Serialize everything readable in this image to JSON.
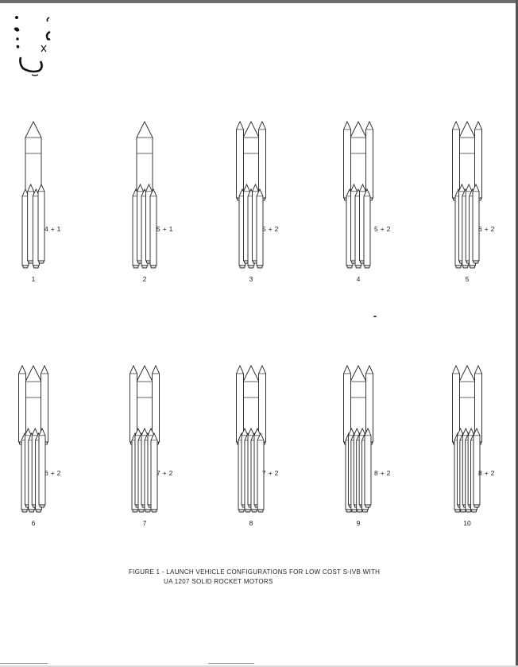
{
  "figure": {
    "caption_line1": "FIGURE 1 - LAUNCH VEHICLE CONFIGURATIONS FOR LOW COST S-IVB WITH",
    "caption_line2": "UA 1207 SOLID ROCKET MOTORS"
  },
  "configurations": [
    {
      "number": "1",
      "label": "4 + 1",
      "boosters": 4,
      "upper": 1
    },
    {
      "number": "2",
      "label": "5 + 1",
      "boosters": 5,
      "upper": 1
    },
    {
      "number": "3",
      "label": "5 + 2",
      "boosters": 5,
      "upper": 2
    },
    {
      "number": "4",
      "label": "5 + 2",
      "boosters": 5,
      "upper": 2
    },
    {
      "number": "5",
      "label": "6 + 2",
      "boosters": 6,
      "upper": 2
    },
    {
      "number": "6",
      "label": "6 + 2",
      "boosters": 6,
      "upper": 2
    },
    {
      "number": "7",
      "label": "7 + 2",
      "boosters": 7,
      "upper": 2
    },
    {
      "number": "8",
      "label": "7 + 2",
      "boosters": 7,
      "upper": 2
    },
    {
      "number": "9",
      "label": "8 + 2",
      "boosters": 8,
      "upper": 2
    },
    {
      "number": "10",
      "label": "8 + 2",
      "boosters": 8,
      "upper": 2
    }
  ]
}
